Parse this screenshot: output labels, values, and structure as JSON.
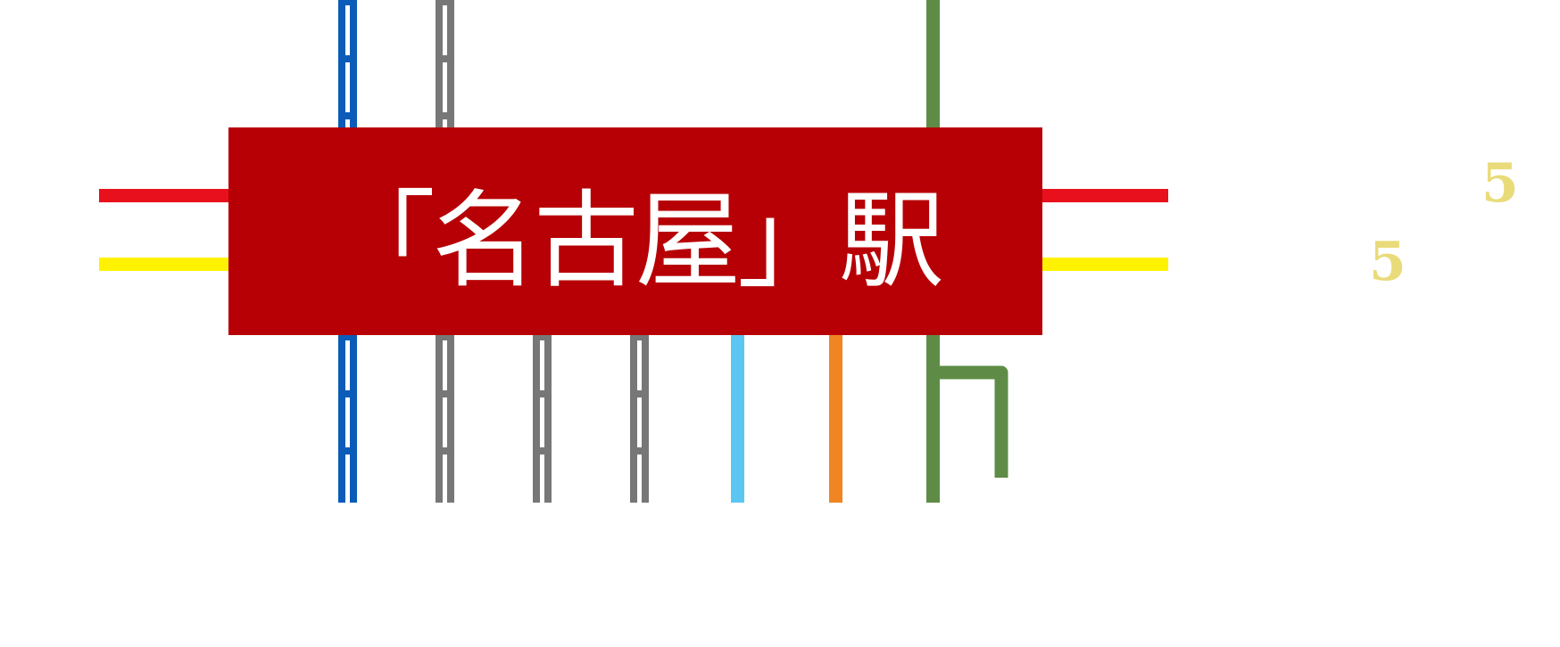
{
  "station": {
    "name": "「名古屋」駅",
    "box_color": "#b70005",
    "text_color": "#ffffff"
  },
  "lines": {
    "horizontal": [
      {
        "color": "#e8101c"
      },
      {
        "color": "#fff200"
      }
    ],
    "vertical": [
      {
        "color": "#0a5cb8",
        "style": "dashed-center"
      },
      {
        "color": "#777777",
        "style": "dashed-center"
      },
      {
        "color": "#777777",
        "style": "dashed-center"
      },
      {
        "color": "#777777",
        "style": "dashed-center"
      },
      {
        "color": "#5bc6f2",
        "style": "solid"
      },
      {
        "color": "#f08521",
        "style": "solid"
      },
      {
        "color": "#5e8c46",
        "style": "solid-with-branch"
      }
    ]
  },
  "route_numbers": [
    "5",
    "5"
  ],
  "route_number_color": "#e9db7a"
}
